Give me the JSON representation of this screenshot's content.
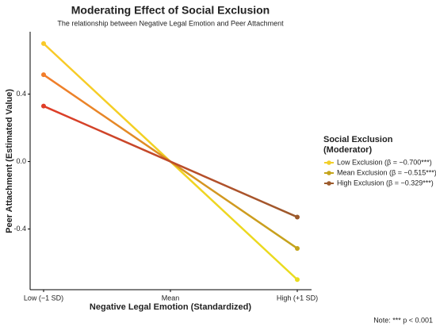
{
  "chart_data": {
    "type": "line",
    "title": "Moderating Effect of Social Exclusion",
    "subtitle": "The relationship between Negative Legal Emotion and Peer Attachment",
    "x_label": "Negative Legal Emotion (Standardized)",
    "y_label": "Peer Attachment (Estimated Value)",
    "categories": [
      "Low (−1 SD)",
      "Mean",
      "High (+1 SD)"
    ],
    "series": [
      {
        "name": "Low Exclusion (β = −0.700***)",
        "color": "#f2cf2a",
        "gradient": [
          "#f9c928",
          "#e9dc1e"
        ],
        "values": [
          0.7,
          0,
          -0.7
        ]
      },
      {
        "name": "Mean Exclusion (β = −0.515***)",
        "color": "#c4a41c",
        "gradient": [
          "#f27d2b",
          "#c4a41c"
        ],
        "values": [
          0.515,
          0,
          -0.515
        ]
      },
      {
        "name": "High Exclusion (β = −0.329***)",
        "color": "#9c5a2c",
        "gradient": [
          "#e03d28",
          "#9c5a2c"
        ],
        "values": [
          0.329,
          0,
          -0.329
        ]
      }
    ],
    "ylim": [
      -0.76,
      0.77
    ],
    "yticks": [
      -0.4,
      {
        "value": 0,
        "label": "0.0"
      },
      0.4
    ],
    "grid": false,
    "legend_title": [
      "Social Exclusion",
      "(Moderator)"
    ],
    "legend_position": "right",
    "note": "Note: *** p < 0.001"
  }
}
